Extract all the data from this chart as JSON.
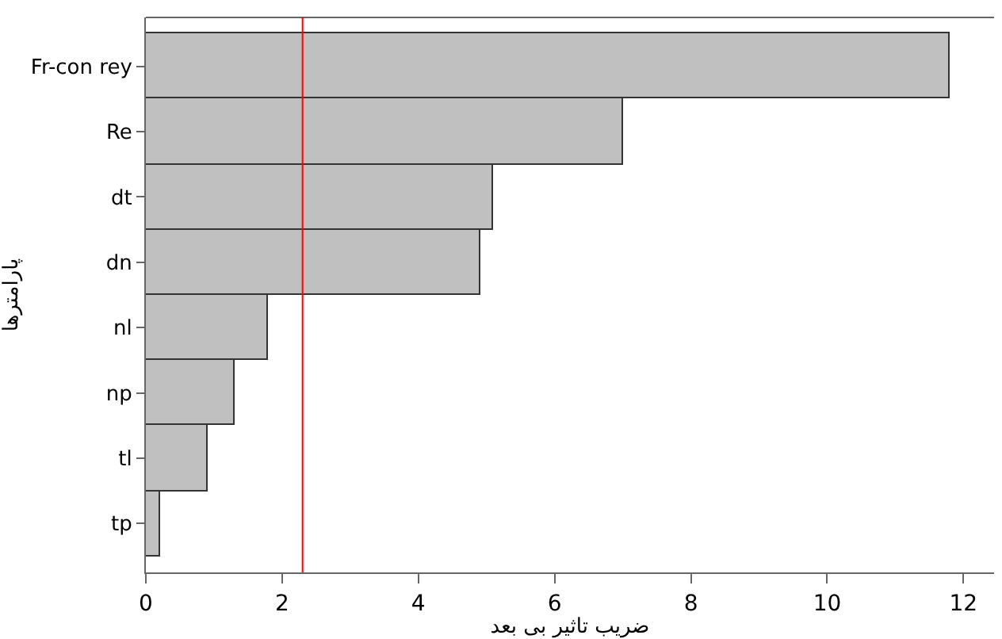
{
  "chart_data": {
    "type": "bar",
    "orientation": "horizontal",
    "xlabel": "ضریب تاثیر بی بعد",
    "ylabel": "پارامترها",
    "categories": [
      "Fr-con rey",
      "Re",
      "dt",
      "dn",
      "nl",
      "np",
      "tl",
      "tp"
    ],
    "values": [
      11.8,
      7.0,
      5.1,
      4.9,
      1.8,
      1.3,
      0.9,
      0.2
    ],
    "color": "#c0c0c0",
    "xlim": [
      0,
      12.45
    ],
    "xticks": [
      0,
      2,
      4,
      6,
      8,
      10,
      12
    ],
    "ref_lines": [
      {
        "axis": "x",
        "value": 2.3,
        "color": "#ff0000"
      }
    ],
    "grid": false,
    "legend": false
  }
}
